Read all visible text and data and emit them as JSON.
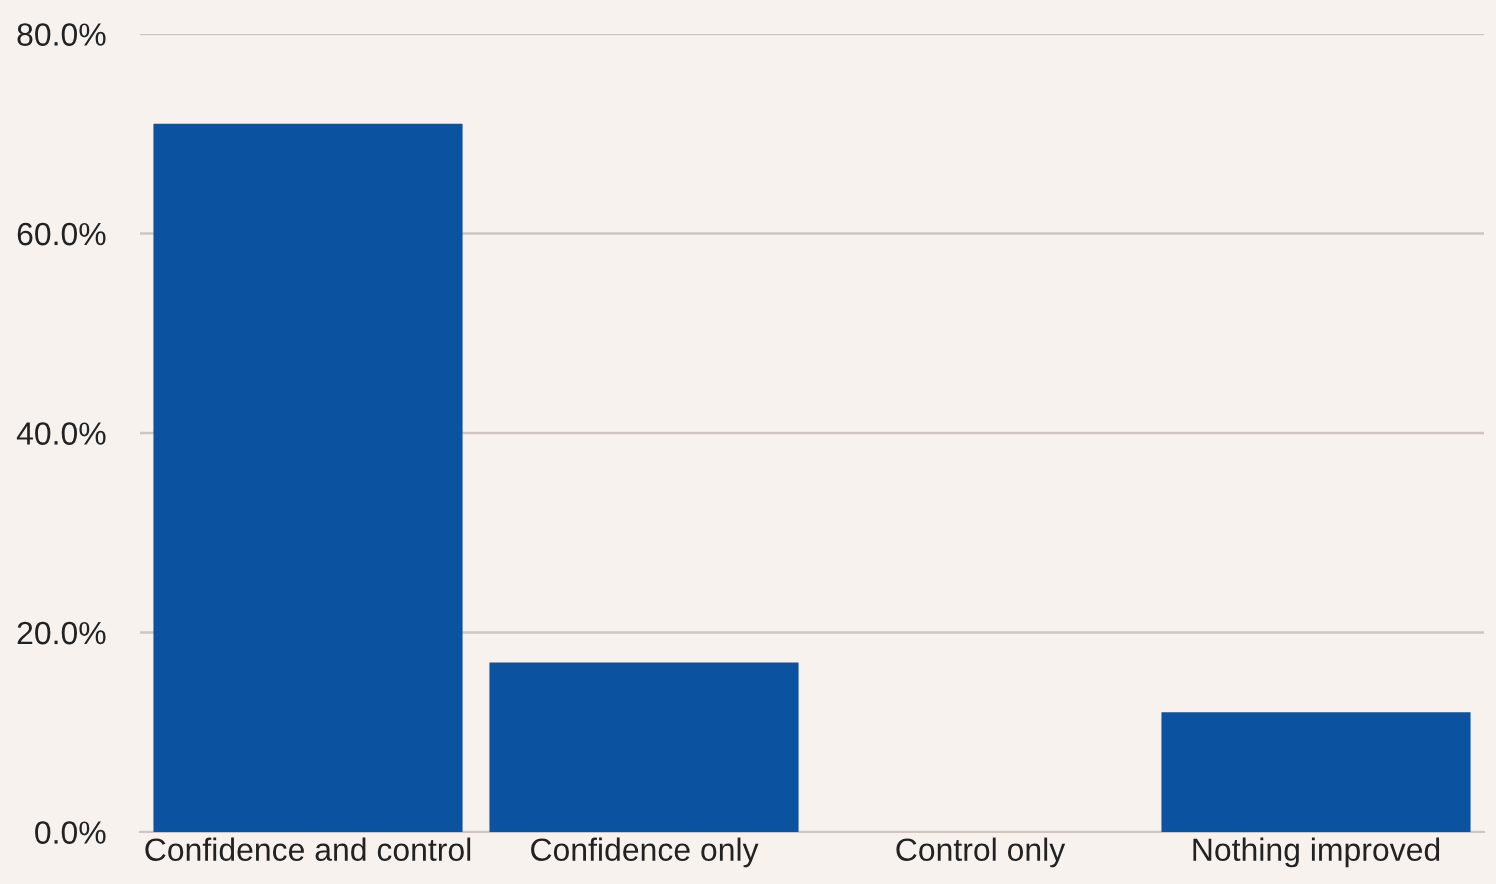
{
  "chart_data": {
    "type": "bar",
    "categories": [
      "Confidence and control",
      "Confidence only",
      "Control only",
      "Nothing improved"
    ],
    "values": [
      71,
      17,
      0,
      12
    ],
    "color": "#0b52a0",
    "ylim": [
      0,
      80
    ],
    "yticks": [
      {
        "value": 0,
        "label": "0.0%"
      },
      {
        "value": 20,
        "label": "20.0%"
      },
      {
        "value": 40,
        "label": "40.0%"
      },
      {
        "value": 60,
        "label": "60.0%"
      },
      {
        "value": 80,
        "label": "80.0%"
      }
    ],
    "grid": "y"
  }
}
